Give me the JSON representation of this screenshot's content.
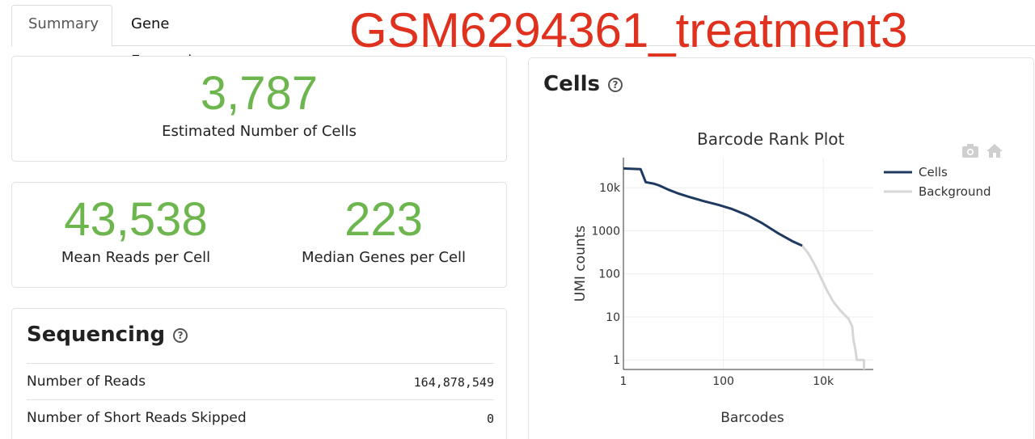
{
  "tabs": [
    {
      "label": "Summary"
    },
    {
      "label": "Gene Expression"
    }
  ],
  "sample_title": "GSM6294361_treatment3",
  "metrics": {
    "cells": {
      "value": "3,787",
      "label": "Estimated Number of Cells"
    },
    "mean_reads": {
      "value": "43,538",
      "label": "Mean Reads per Cell"
    },
    "median_genes": {
      "value": "223",
      "label": "Median Genes per Cell"
    }
  },
  "sequencing": {
    "title": "Sequencing",
    "rows": [
      {
        "label": "Number of Reads",
        "value": "164,878,549"
      },
      {
        "label": "Number of Short Reads Skipped",
        "value": "0"
      }
    ]
  },
  "cells_panel": {
    "title": "Cells"
  },
  "chart_data": {
    "type": "line",
    "title": "Barcode Rank Plot",
    "xlabel": "Barcodes",
    "ylabel": "UMI counts",
    "x_scale": "log",
    "y_scale": "log",
    "xlim": [
      1,
      100000
    ],
    "ylim": [
      0.6,
      50000
    ],
    "x_ticks": [
      {
        "value": 1,
        "label": "1"
      },
      {
        "value": 100,
        "label": "100"
      },
      {
        "value": 10000,
        "label": "10k"
      }
    ],
    "y_ticks": [
      {
        "value": 1,
        "label": "1"
      },
      {
        "value": 10,
        "label": "10"
      },
      {
        "value": 100,
        "label": "100"
      },
      {
        "value": 1000,
        "label": "1000"
      },
      {
        "value": 10000,
        "label": "10k"
      }
    ],
    "grid": true,
    "legend": "top-right",
    "series": [
      {
        "name": "Cells",
        "color": "#1f3a5f",
        "points": [
          [
            1,
            28000
          ],
          [
            2.2,
            27000
          ],
          [
            2.8,
            13500
          ],
          [
            4,
            12500
          ],
          [
            5,
            11500
          ],
          [
            6,
            10500
          ],
          [
            8,
            9000
          ],
          [
            12,
            7500
          ],
          [
            20,
            6200
          ],
          [
            40,
            4900
          ],
          [
            80,
            4000
          ],
          [
            150,
            3200
          ],
          [
            300,
            2300
          ],
          [
            600,
            1500
          ],
          [
            1200,
            900
          ],
          [
            2500,
            560
          ],
          [
            3787,
            450
          ]
        ]
      },
      {
        "name": "Background",
        "color": "#d6d6d6",
        "points": [
          [
            3787,
            450
          ],
          [
            5000,
            300
          ],
          [
            7000,
            150
          ],
          [
            9000,
            80
          ],
          [
            12000,
            40
          ],
          [
            16000,
            22
          ],
          [
            22000,
            14
          ],
          [
            32000,
            9
          ],
          [
            38000,
            6
          ],
          [
            40000,
            3
          ],
          [
            43000,
            2
          ],
          [
            47000,
            1
          ],
          [
            60000,
            1
          ],
          [
            65000,
            1
          ],
          [
            65500,
            0.6
          ]
        ]
      }
    ]
  }
}
